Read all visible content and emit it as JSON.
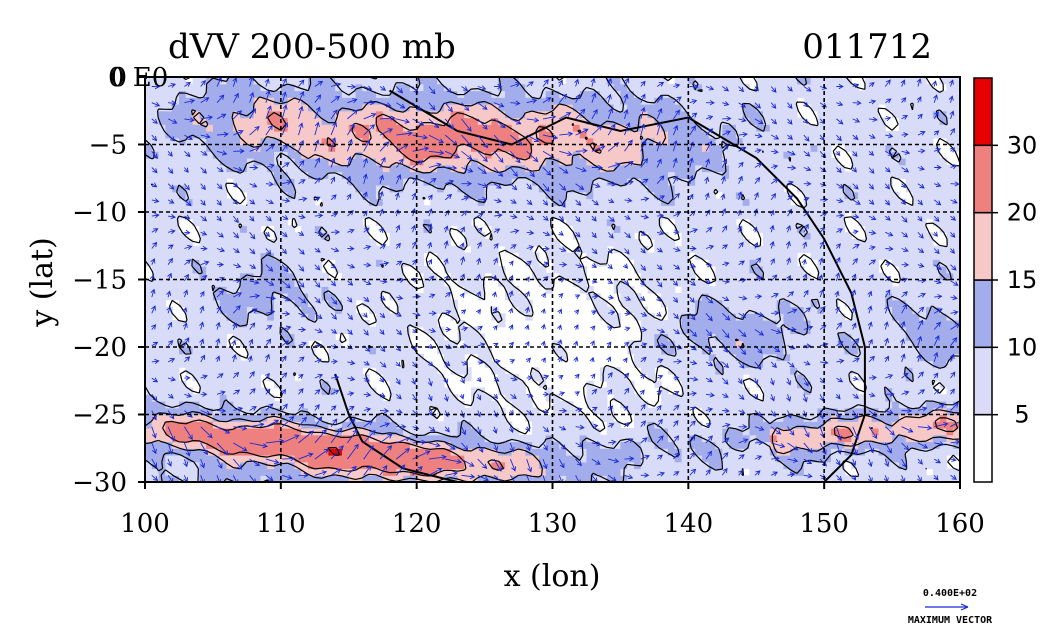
{
  "title_left": "dVV 200-500 mb",
  "title_right": "011712",
  "corner_label": "0 E0",
  "chart_data": {
    "type": "heatmap",
    "title": "dVV 200-500 mb",
    "date_label": "011712",
    "xlabel": "x (lon)",
    "ylabel": "y (lat)",
    "xlim": [
      100,
      160
    ],
    "ylim": [
      -30,
      0
    ],
    "x_ticks": [
      100,
      110,
      120,
      130,
      140,
      150,
      160
    ],
    "y_ticks": [
      0,
      -5,
      -10,
      -15,
      -20,
      -25,
      -30
    ],
    "x_tick_labels": [
      "100",
      "110",
      "120",
      "130",
      "140",
      "150",
      "160"
    ],
    "y_tick_labels": [
      "0",
      "−5",
      "−10",
      "−15",
      "−20",
      "−25",
      "−30"
    ],
    "grid": true,
    "grid_style": "dashed",
    "colorbar": {
      "levels": [
        5,
        10,
        15,
        20,
        30
      ],
      "labels": [
        "5",
        "10",
        "15",
        "20",
        "30"
      ],
      "colors": [
        "#ffffff",
        "#d8dcf8",
        "#a3adec",
        "#f7c8c8",
        "#ee8080",
        "#e60000"
      ]
    },
    "vector_field": true,
    "max_vector_label": "0.400E+02",
    "max_vector_caption": "MAXIMUM VECTOR",
    "vector_color": "#1a2bd6"
  }
}
